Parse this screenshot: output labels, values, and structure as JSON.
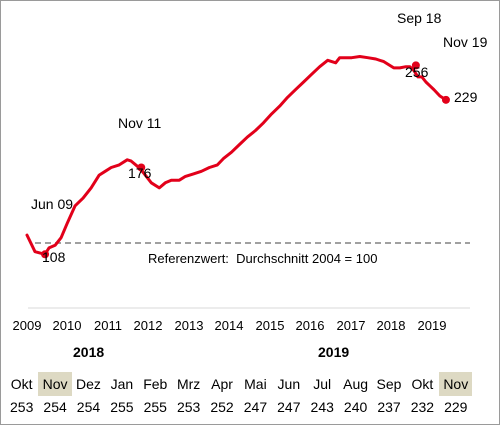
{
  "chart_data": {
    "type": "line",
    "color": "#e2001a",
    "reference_line": "Referenzwert:  Durchschnitt 2004 = 100",
    "x_ticks": [
      "2009",
      "2010",
      "2011",
      "2012",
      "2013",
      "2014",
      "2015",
      "2016",
      "2017",
      "2018",
      "2019"
    ],
    "x_range": [
      2009.0,
      2020.0
    ],
    "y_range": [
      80,
      290
    ],
    "reference_value": 100,
    "series": [
      {
        "points": [
          [
            2009.0,
            123
          ],
          [
            2009.2,
            110
          ],
          [
            2009.45,
            108
          ],
          [
            2009.55,
            113
          ],
          [
            2009.7,
            115
          ],
          [
            2009.85,
            121
          ],
          [
            2010.0,
            132
          ],
          [
            2010.2,
            146
          ],
          [
            2010.4,
            152
          ],
          [
            2010.6,
            160
          ],
          [
            2010.8,
            170
          ],
          [
            2010.95,
            173
          ],
          [
            2011.1,
            176
          ],
          [
            2011.3,
            178
          ],
          [
            2011.5,
            182
          ],
          [
            2011.6,
            181
          ],
          [
            2011.75,
            177
          ],
          [
            2011.9,
            172
          ],
          [
            2012.1,
            164
          ],
          [
            2012.3,
            160
          ],
          [
            2012.45,
            164
          ],
          [
            2012.6,
            166
          ],
          [
            2012.8,
            166
          ],
          [
            2012.95,
            169
          ],
          [
            2013.15,
            171
          ],
          [
            2013.35,
            173
          ],
          [
            2013.55,
            176
          ],
          [
            2013.75,
            178
          ],
          [
            2013.9,
            183
          ],
          [
            2014.1,
            188
          ],
          [
            2014.3,
            194
          ],
          [
            2014.5,
            200
          ],
          [
            2014.7,
            205
          ],
          [
            2014.9,
            211
          ],
          [
            2015.1,
            218
          ],
          [
            2015.3,
            224
          ],
          [
            2015.5,
            231
          ],
          [
            2015.7,
            237
          ],
          [
            2015.9,
            243
          ],
          [
            2016.1,
            249
          ],
          [
            2016.3,
            255
          ],
          [
            2016.5,
            260
          ],
          [
            2016.7,
            258
          ],
          [
            2016.8,
            262
          ],
          [
            2016.95,
            262
          ],
          [
            2017.1,
            262
          ],
          [
            2017.3,
            263
          ],
          [
            2017.5,
            262
          ],
          [
            2017.7,
            261
          ],
          [
            2017.9,
            259
          ],
          [
            2018.0,
            257
          ],
          [
            2018.15,
            254
          ],
          [
            2018.3,
            254
          ],
          [
            2018.45,
            255
          ],
          [
            2018.55,
            255
          ],
          [
            2018.65,
            252
          ],
          [
            2018.75,
            247
          ],
          [
            2018.85,
            247
          ],
          [
            2018.95,
            243
          ],
          [
            2019.05,
            240
          ],
          [
            2019.15,
            237
          ],
          [
            2019.3,
            232
          ],
          [
            2019.45,
            229
          ]
        ]
      }
    ],
    "annotations": [
      {
        "label": "Jun 09",
        "value": "108"
      },
      {
        "label": "Nov 11",
        "value": "176"
      },
      {
        "label": "Sep 18",
        "value": "256"
      },
      {
        "label": "Nov 19",
        "value": "229"
      }
    ]
  },
  "table": {
    "years": [
      "2018",
      "2019"
    ],
    "months": [
      "Okt",
      "Nov",
      "Dez",
      "Jan",
      "Feb",
      "Mrz",
      "Apr",
      "Mai",
      "Jun",
      "Jul",
      "Aug",
      "Sep",
      "Okt",
      "Nov"
    ],
    "values": [
      "253",
      "254",
      "254",
      "255",
      "255",
      "253",
      "252",
      "247",
      "247",
      "243",
      "240",
      "237",
      "232",
      "229"
    ],
    "highlighted": [
      1,
      13
    ]
  }
}
